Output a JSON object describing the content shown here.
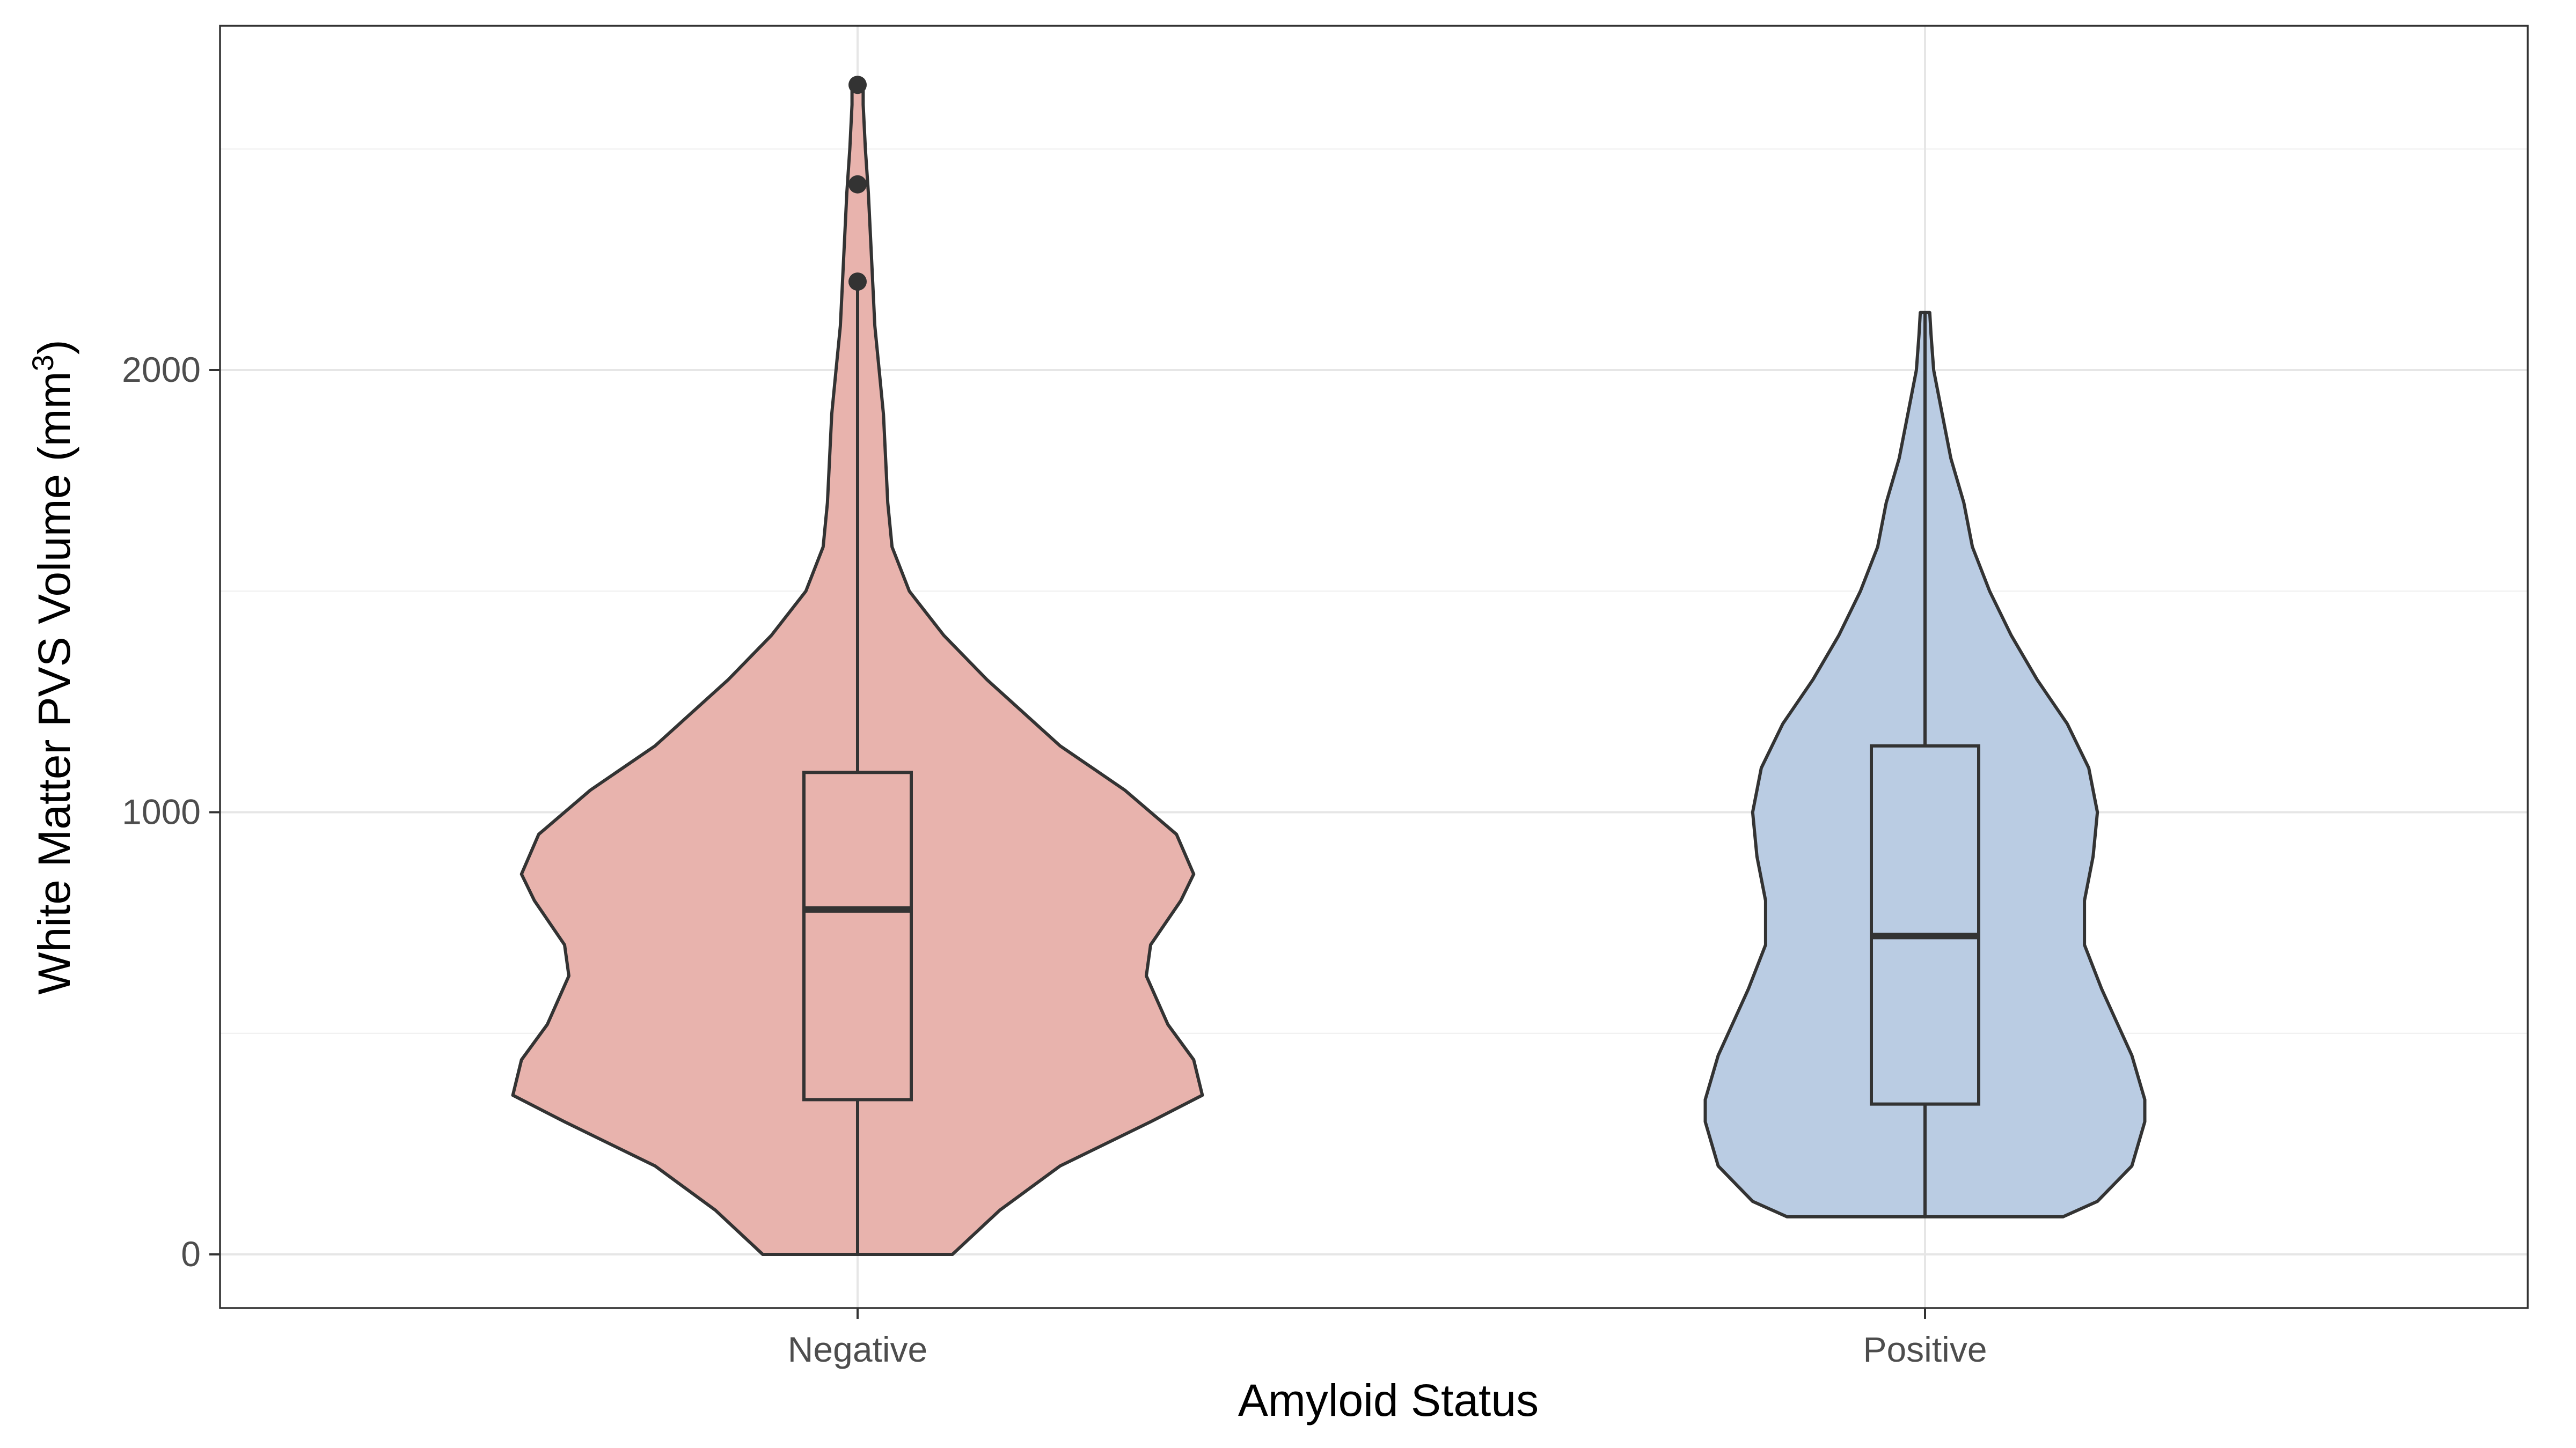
{
  "chart_data": {
    "type": "violin",
    "xlabel": "Amyloid Status",
    "ylabel_main": "White Matter PVS Volume (mm",
    "ylabel_sup": "3",
    "ylabel_end": ")",
    "ylim": [
      -130,
      2720
    ],
    "y_ticks": [
      0,
      1000,
      2000
    ],
    "y_minor_ticks": [
      500,
      1500,
      2500
    ],
    "grid": true,
    "legend": "none",
    "categories": [
      "Negative",
      "Positive"
    ],
    "groups": [
      {
        "name": "Negative",
        "fill": "#e8b3ad",
        "box": {
          "q1": 350,
          "median": 780,
          "q3": 1090,
          "whisker_low": 0,
          "whisker_high": 2200
        },
        "outliers": [
          2200,
          2420,
          2645
        ],
        "density": [
          [
            0,
            0.22
          ],
          [
            100,
            0.33
          ],
          [
            200,
            0.47
          ],
          [
            300,
            0.68
          ],
          [
            360,
            0.8
          ],
          [
            440,
            0.78
          ],
          [
            520,
            0.72
          ],
          [
            630,
            0.67
          ],
          [
            700,
            0.68
          ],
          [
            800,
            0.75
          ],
          [
            860,
            0.78
          ],
          [
            950,
            0.74
          ],
          [
            1050,
            0.62
          ],
          [
            1150,
            0.47
          ],
          [
            1300,
            0.3
          ],
          [
            1400,
            0.2
          ],
          [
            1500,
            0.12
          ],
          [
            1600,
            0.08
          ],
          [
            1700,
            0.07
          ],
          [
            1800,
            0.065
          ],
          [
            1900,
            0.06
          ],
          [
            2000,
            0.05
          ],
          [
            2100,
            0.04
          ],
          [
            2200,
            0.035
          ],
          [
            2300,
            0.03
          ],
          [
            2400,
            0.025
          ],
          [
            2500,
            0.018
          ],
          [
            2600,
            0.013
          ],
          [
            2645,
            0.013
          ]
        ]
      },
      {
        "name": "Positive",
        "fill": "#bacce3",
        "box": {
          "q1": 340,
          "median": 720,
          "q3": 1150,
          "whisker_low": 85,
          "whisker_high": 2130
        },
        "outliers": [],
        "density": [
          [
            85,
            0.32
          ],
          [
            120,
            0.4
          ],
          [
            200,
            0.48
          ],
          [
            300,
            0.51
          ],
          [
            350,
            0.51
          ],
          [
            450,
            0.48
          ],
          [
            600,
            0.41
          ],
          [
            700,
            0.37
          ],
          [
            800,
            0.37
          ],
          [
            900,
            0.39
          ],
          [
            1000,
            0.4
          ],
          [
            1100,
            0.38
          ],
          [
            1200,
            0.33
          ],
          [
            1300,
            0.26
          ],
          [
            1400,
            0.2
          ],
          [
            1500,
            0.15
          ],
          [
            1600,
            0.11
          ],
          [
            1700,
            0.09
          ],
          [
            1800,
            0.06
          ],
          [
            1900,
            0.04
          ],
          [
            2000,
            0.02
          ],
          [
            2080,
            0.014
          ],
          [
            2130,
            0.011
          ]
        ]
      }
    ]
  }
}
